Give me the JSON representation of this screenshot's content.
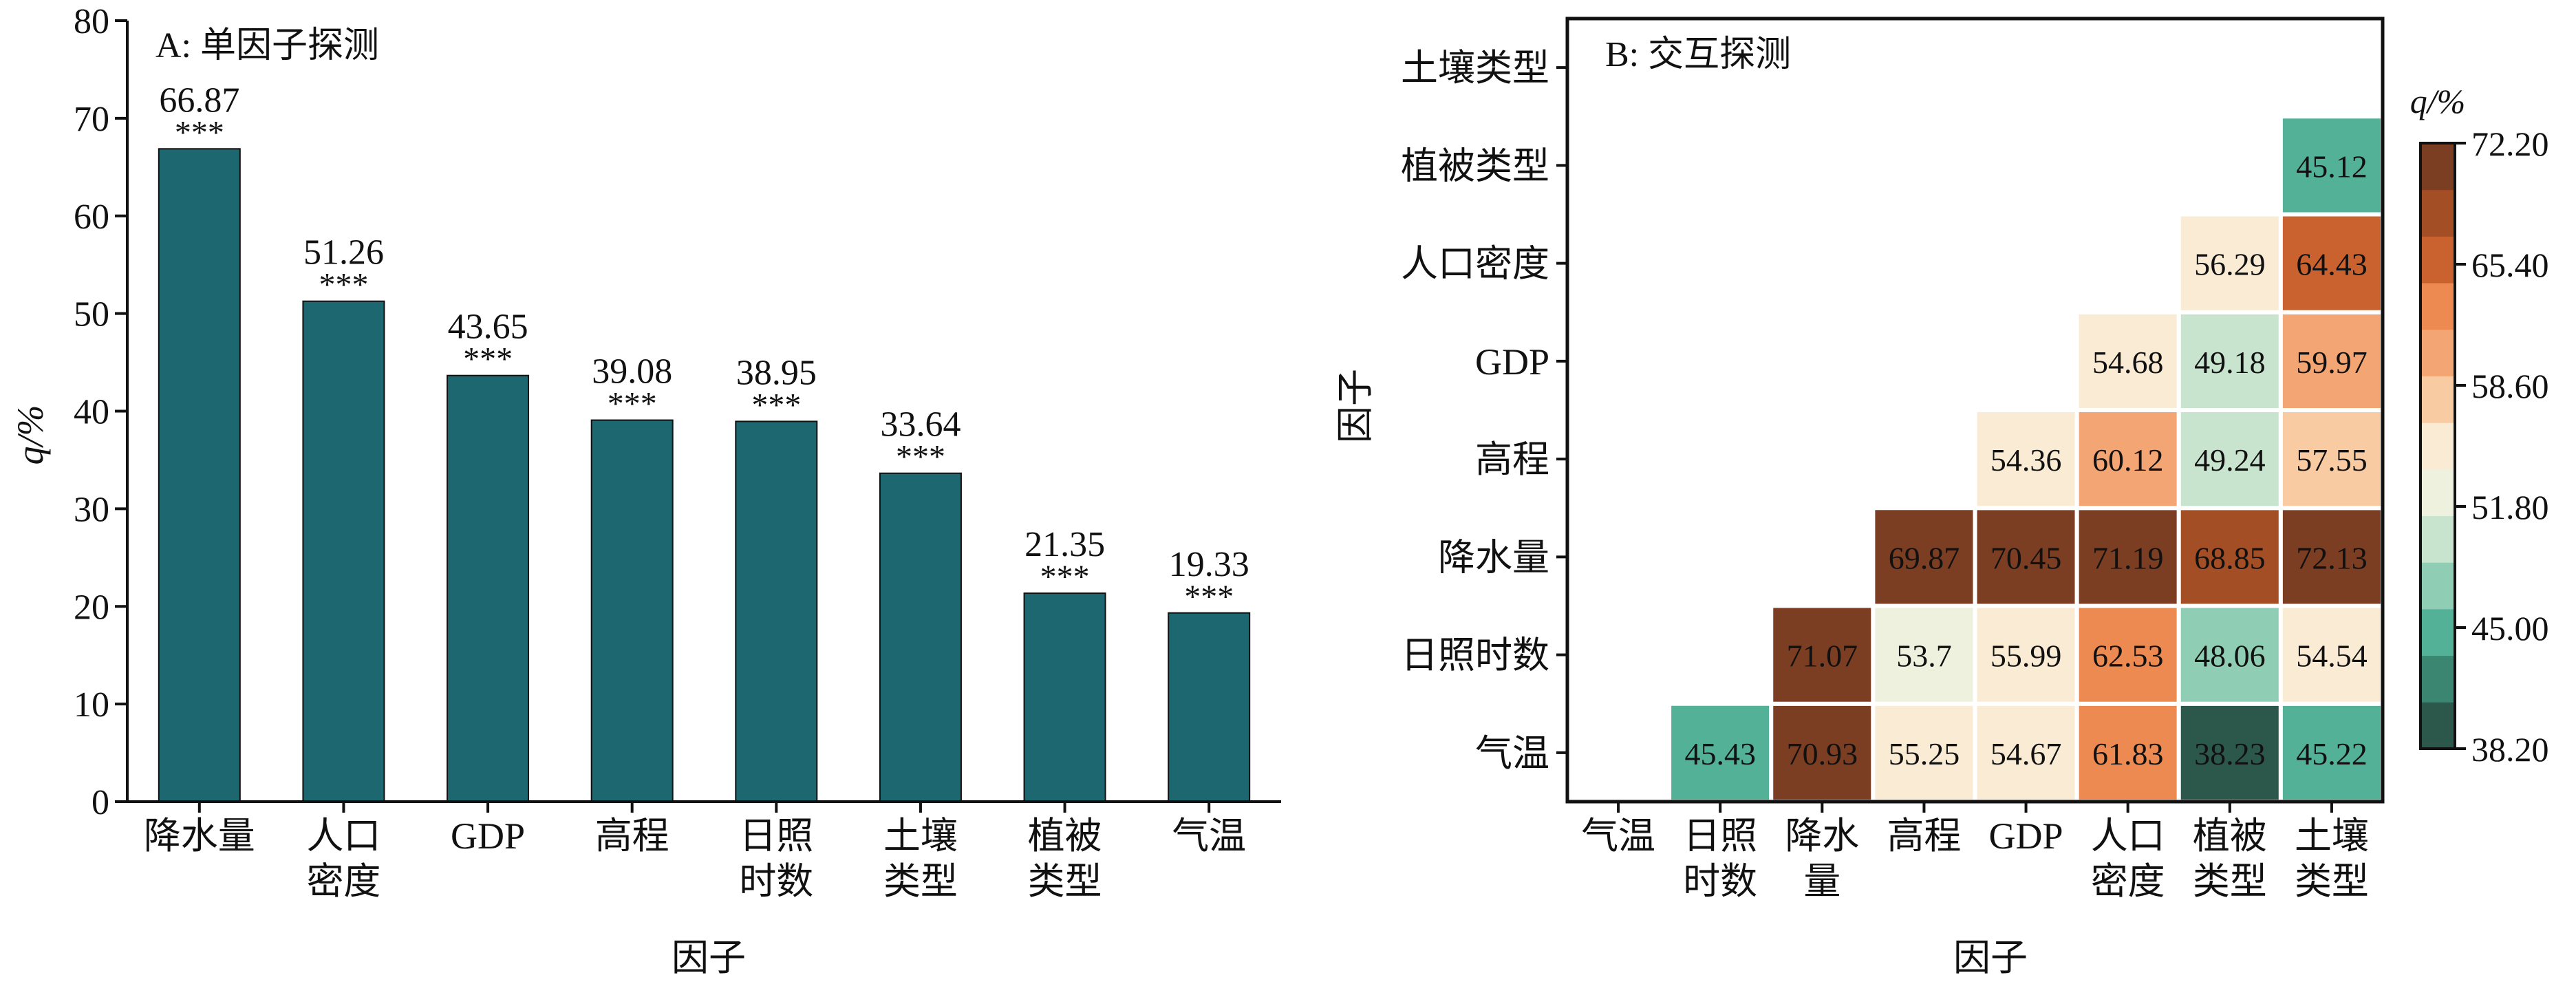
{
  "chart_data": [
    {
      "panel": "A",
      "type": "bar",
      "title": "A: 单因子探测",
      "xlabel": "因子",
      "ylabel": "q/%",
      "ylim": [
        0,
        80
      ],
      "yticks": [
        0,
        10,
        20,
        30,
        40,
        50,
        60,
        70,
        80
      ],
      "grid": false,
      "categories": [
        [
          "降水量"
        ],
        [
          "人口",
          "密度"
        ],
        [
          "GDP"
        ],
        [
          "高程"
        ],
        [
          "日照",
          "时数"
        ],
        [
          "土壤",
          "类型"
        ],
        [
          "植被",
          "类型"
        ],
        [
          "气温"
        ]
      ],
      "values": [
        66.87,
        51.26,
        43.65,
        39.08,
        38.95,
        33.64,
        21.35,
        19.33
      ],
      "significance": [
        "***",
        "***",
        "***",
        "***",
        "***",
        "***",
        "***",
        "***"
      ],
      "bar_color": "#1c6770"
    },
    {
      "panel": "B",
      "type": "heatmap",
      "title": "B: 交互探测",
      "xlabel": "因子",
      "ylabel": "因子",
      "x_categories": [
        [
          "气温"
        ],
        [
          "日照",
          "时数"
        ],
        [
          "降水",
          "量"
        ],
        [
          "高程"
        ],
        [
          "GDP"
        ],
        [
          "人口",
          "密度"
        ],
        [
          "植被",
          "类型"
        ],
        [
          "土壤",
          "类型"
        ]
      ],
      "y_categories": [
        "气温",
        "日照时数",
        "降水量",
        "高程",
        "GDP",
        "人口密度",
        "植被类型",
        "土壤类型"
      ],
      "matrix": [
        [
          null,
          45.43,
          70.93,
          55.25,
          54.67,
          61.83,
          38.23,
          45.22
        ],
        [
          null,
          null,
          71.07,
          53.7,
          55.99,
          62.53,
          48.06,
          54.54
        ],
        [
          null,
          null,
          null,
          69.87,
          70.45,
          71.19,
          68.85,
          72.13
        ],
        [
          null,
          null,
          null,
          null,
          54.36,
          60.12,
          49.24,
          57.55
        ],
        [
          null,
          null,
          null,
          null,
          null,
          54.68,
          49.18,
          59.97
        ],
        [
          null,
          null,
          null,
          null,
          null,
          null,
          56.29,
          64.43
        ],
        [
          null,
          null,
          null,
          null,
          null,
          null,
          null,
          45.12
        ],
        [
          null,
          null,
          null,
          null,
          null,
          null,
          null,
          null
        ]
      ],
      "colorbar": {
        "label": "q/%",
        "range": [
          38.2,
          72.2
        ],
        "ticks": [
          "72.20",
          "65.40",
          "58.60",
          "51.80",
          "45.00",
          "38.20"
        ],
        "colors": [
          "#2c584c",
          "#3b8670",
          "#52b197",
          "#8fcdb4",
          "#c8e4cf",
          "#eef1de",
          "#faebd4",
          "#f8cba3",
          "#f3a674",
          "#ec8a51",
          "#c9622e",
          "#a44e26",
          "#7b3e22"
        ]
      }
    }
  ]
}
